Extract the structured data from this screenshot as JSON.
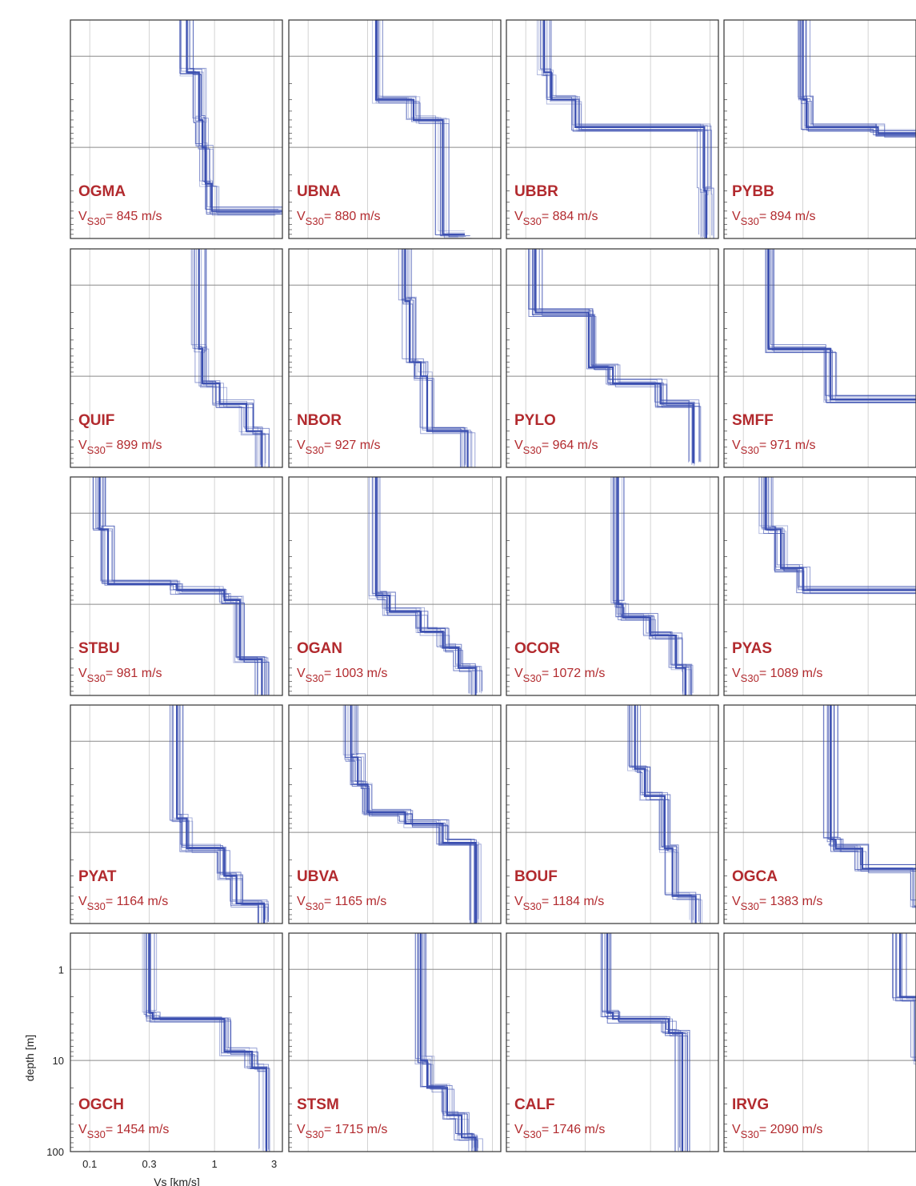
{
  "chart_data": {
    "type": "line",
    "xlabel": "Vs [km/s]",
    "ylabel": "depth [m]",
    "x_scale": "log",
    "y_scale": "log",
    "y_inverted": true,
    "xlim": [
      0.07,
      3.5
    ],
    "ylim": [
      0.4,
      100
    ],
    "xticks": [
      0.1,
      0.3,
      1,
      3
    ],
    "xtick_labels": [
      "0.1",
      "0.3",
      "1",
      "3"
    ],
    "yticks": [
      1,
      10,
      100
    ],
    "ytick_labels": [
      "1",
      "10",
      "100"
    ],
    "grid": true,
    "vs30_prefix": "V",
    "vs30_sub": "S30",
    "vs30_eq": "= ",
    "colors": {
      "profile": "#3b4fb0",
      "label": "#b22a2e",
      "grid": "#8a8a8a"
    },
    "panels": [
      {
        "station": "OGMA",
        "vs30_value": "845 m/s",
        "profile": [
          [
            0.6,
            0.4
          ],
          [
            0.6,
            1.5
          ],
          [
            0.75,
            1.5
          ],
          [
            0.75,
            5
          ],
          [
            0.8,
            5
          ],
          [
            0.8,
            10
          ],
          [
            0.85,
            10
          ],
          [
            0.85,
            25
          ],
          [
            0.95,
            25
          ],
          [
            0.95,
            50
          ],
          [
            3.5,
            50
          ]
        ]
      },
      {
        "station": "UBNA",
        "vs30_value": "880 m/s",
        "profile": [
          [
            0.35,
            0.4
          ],
          [
            0.35,
            3
          ],
          [
            0.7,
            3
          ],
          [
            0.7,
            5
          ],
          [
            1.2,
            5
          ],
          [
            1.2,
            90
          ],
          [
            1.8,
            90
          ]
        ]
      },
      {
        "station": "UBBR",
        "vs30_value": "884 m/s",
        "profile": [
          [
            0.14,
            0.4
          ],
          [
            0.14,
            1.5
          ],
          [
            0.16,
            1.5
          ],
          [
            0.16,
            3
          ],
          [
            0.25,
            3
          ],
          [
            0.25,
            6
          ],
          [
            2.7,
            6
          ],
          [
            2.7,
            30
          ],
          [
            2.8,
            30
          ],
          [
            2.8,
            100
          ]
        ]
      },
      {
        "station": "PYBB",
        "vs30_value": "894 m/s",
        "profile": [
          [
            0.3,
            0.4
          ],
          [
            0.3,
            3
          ],
          [
            0.32,
            3
          ],
          [
            0.32,
            6
          ],
          [
            1.2,
            6
          ],
          [
            1.2,
            7
          ],
          [
            3.5,
            7
          ]
        ]
      },
      {
        "station": "QUIF",
        "vs30_value": "899 m/s",
        "profile": [
          [
            0.75,
            0.4
          ],
          [
            0.75,
            5
          ],
          [
            0.8,
            5
          ],
          [
            0.8,
            12
          ],
          [
            1.1,
            12
          ],
          [
            1.1,
            20
          ],
          [
            1.8,
            20
          ],
          [
            1.8,
            40
          ],
          [
            2.4,
            40
          ],
          [
            2.4,
            100
          ]
        ]
      },
      {
        "station": "NBOR",
        "vs30_value": "927 m/s",
        "profile": [
          [
            0.6,
            0.4
          ],
          [
            0.6,
            1.5
          ],
          [
            0.65,
            1.5
          ],
          [
            0.65,
            7
          ],
          [
            0.8,
            7
          ],
          [
            0.8,
            10
          ],
          [
            0.9,
            10
          ],
          [
            0.9,
            40
          ],
          [
            1.9,
            40
          ],
          [
            1.9,
            100
          ]
        ]
      },
      {
        "station": "PYLO",
        "vs30_value": "964 m/s",
        "profile": [
          [
            0.12,
            0.4
          ],
          [
            0.12,
            2
          ],
          [
            0.32,
            2
          ],
          [
            0.32,
            8
          ],
          [
            0.5,
            8
          ],
          [
            0.5,
            12
          ],
          [
            1.2,
            12
          ],
          [
            1.2,
            20
          ],
          [
            2.2,
            20
          ],
          [
            2.2,
            90
          ]
        ]
      },
      {
        "station": "SMFF",
        "vs30_value": "971 m/s",
        "profile": [
          [
            0.16,
            0.4
          ],
          [
            0.16,
            5
          ],
          [
            0.5,
            5
          ],
          [
            0.5,
            18
          ],
          [
            3.5,
            18
          ]
        ]
      },
      {
        "station": "STBU",
        "vs30_value": "981 m/s",
        "profile": [
          [
            0.12,
            0.4
          ],
          [
            0.12,
            1.5
          ],
          [
            0.14,
            1.5
          ],
          [
            0.14,
            6
          ],
          [
            0.5,
            6
          ],
          [
            0.5,
            7
          ],
          [
            1.2,
            7
          ],
          [
            1.2,
            9
          ],
          [
            1.6,
            9
          ],
          [
            1.6,
            40
          ],
          [
            2.4,
            40
          ],
          [
            2.4,
            100
          ]
        ]
      },
      {
        "station": "OGAN",
        "vs30_value": "1003 m/s",
        "profile": [
          [
            0.35,
            0.4
          ],
          [
            0.35,
            8
          ],
          [
            0.45,
            8
          ],
          [
            0.45,
            12
          ],
          [
            0.8,
            12
          ],
          [
            0.8,
            20
          ],
          [
            1.2,
            20
          ],
          [
            1.2,
            30
          ],
          [
            1.6,
            30
          ],
          [
            1.6,
            50
          ],
          [
            2.2,
            50
          ],
          [
            2.2,
            100
          ]
        ]
      },
      {
        "station": "OCOR",
        "vs30_value": "1072 m/s",
        "profile": [
          [
            0.55,
            0.4
          ],
          [
            0.55,
            10
          ],
          [
            0.6,
            10
          ],
          [
            0.6,
            14
          ],
          [
            1.0,
            14
          ],
          [
            1.0,
            22
          ],
          [
            1.6,
            22
          ],
          [
            1.6,
            50
          ],
          [
            1.9,
            50
          ],
          [
            1.9,
            100
          ]
        ]
      },
      {
        "station": "PYAS",
        "vs30_value": "1089 m/s",
        "profile": [
          [
            0.15,
            0.4
          ],
          [
            0.15,
            1.5
          ],
          [
            0.2,
            1.5
          ],
          [
            0.2,
            4
          ],
          [
            0.3,
            4
          ],
          [
            0.3,
            7
          ],
          [
            3.5,
            7
          ]
        ]
      },
      {
        "station": "PYAT",
        "vs30_value": "1164 m/s",
        "profile": [
          [
            0.5,
            0.4
          ],
          [
            0.5,
            7
          ],
          [
            0.6,
            7
          ],
          [
            0.6,
            15
          ],
          [
            1.2,
            15
          ],
          [
            1.2,
            30
          ],
          [
            1.5,
            30
          ],
          [
            1.5,
            60
          ],
          [
            2.5,
            60
          ],
          [
            2.5,
            100
          ]
        ]
      },
      {
        "station": "UBVA",
        "vs30_value": "1165 m/s",
        "profile": [
          [
            0.22,
            0.4
          ],
          [
            0.22,
            1.5
          ],
          [
            0.25,
            1.5
          ],
          [
            0.25,
            3
          ],
          [
            0.3,
            3
          ],
          [
            0.3,
            6
          ],
          [
            0.6,
            6
          ],
          [
            0.6,
            8
          ],
          [
            1.2,
            8
          ],
          [
            1.2,
            13
          ],
          [
            2.2,
            13
          ],
          [
            2.2,
            100
          ]
        ]
      },
      {
        "station": "BOUF",
        "vs30_value": "1184 m/s",
        "profile": [
          [
            0.75,
            0.4
          ],
          [
            0.75,
            2
          ],
          [
            0.9,
            2
          ],
          [
            0.9,
            4
          ],
          [
            1.3,
            4
          ],
          [
            1.3,
            15
          ],
          [
            1.5,
            15
          ],
          [
            1.5,
            50
          ],
          [
            2.3,
            50
          ],
          [
            2.3,
            100
          ]
        ]
      },
      {
        "station": "OGCA",
        "vs30_value": "1383 m/s",
        "profile": [
          [
            0.5,
            0.4
          ],
          [
            0.5,
            12
          ],
          [
            0.55,
            12
          ],
          [
            0.55,
            15
          ],
          [
            0.9,
            15
          ],
          [
            0.9,
            25
          ],
          [
            2.5,
            25
          ],
          [
            2.5,
            60
          ],
          [
            3.5,
            60
          ]
        ]
      },
      {
        "station": "OGCH",
        "vs30_value": "1454 m/s",
        "profile": [
          [
            0.3,
            0.4
          ],
          [
            0.3,
            3
          ],
          [
            0.32,
            3
          ],
          [
            0.32,
            3.5
          ],
          [
            1.2,
            3.5
          ],
          [
            1.2,
            8
          ],
          [
            2.0,
            8
          ],
          [
            2.0,
            12
          ],
          [
            2.6,
            12
          ],
          [
            2.6,
            100
          ]
        ]
      },
      {
        "station": "STSM",
        "vs30_value": "1715 m/s",
        "profile": [
          [
            0.8,
            0.4
          ],
          [
            0.8,
            10
          ],
          [
            0.9,
            10
          ],
          [
            0.9,
            20
          ],
          [
            1.3,
            20
          ],
          [
            1.3,
            40
          ],
          [
            1.7,
            40
          ],
          [
            1.7,
            70
          ],
          [
            2.2,
            70
          ],
          [
            2.2,
            100
          ]
        ]
      },
      {
        "station": "CALF",
        "vs30_value": "1746 m/s",
        "profile": [
          [
            0.45,
            0.4
          ],
          [
            0.45,
            3
          ],
          [
            0.5,
            3
          ],
          [
            0.5,
            3.5
          ],
          [
            1.4,
            3.5
          ],
          [
            1.4,
            5
          ],
          [
            1.8,
            5
          ],
          [
            1.8,
            100
          ]
        ]
      },
      {
        "station": "IRVG",
        "vs30_value": "2090 m/s",
        "profile": [
          [
            1.8,
            0.4
          ],
          [
            1.8,
            2
          ],
          [
            2.5,
            2
          ],
          [
            2.5,
            10
          ],
          [
            3.2,
            10
          ],
          [
            3.2,
            100
          ]
        ]
      }
    ]
  }
}
